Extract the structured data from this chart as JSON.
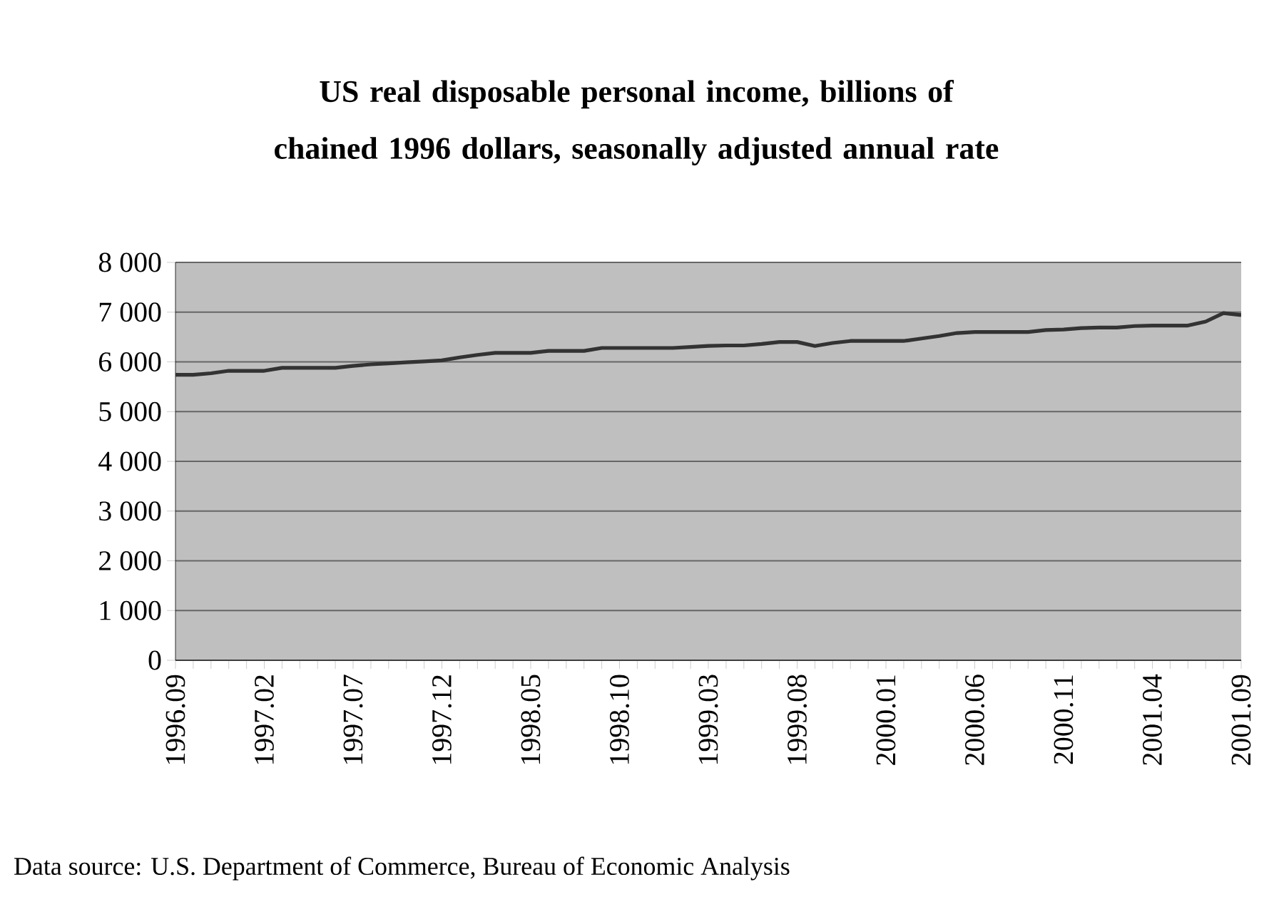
{
  "chart_data": {
    "type": "line",
    "title": "US real disposable personal income, billions of chained 1996 dollars, seasonally adjusted annual rate",
    "categories": [
      "1996.09",
      null,
      null,
      null,
      null,
      "1997.02",
      null,
      null,
      null,
      null,
      "1997.07",
      null,
      null,
      null,
      null,
      "1997.12",
      null,
      null,
      null,
      null,
      "1998.05",
      null,
      null,
      null,
      null,
      "1998.10",
      null,
      null,
      null,
      null,
      "1999.03",
      null,
      null,
      null,
      null,
      "1999.08",
      null,
      null,
      null,
      null,
      "2000.01",
      null,
      null,
      null,
      null,
      "2000.06",
      null,
      null,
      null,
      null,
      "2000.11",
      null,
      null,
      null,
      null,
      "2001.04",
      null,
      null,
      null,
      null,
      "2001.09"
    ],
    "series": [
      {
        "color": "#333333",
        "values": [
          5740,
          5740,
          5770,
          5820,
          5820,
          5820,
          5880,
          5880,
          5880,
          5880,
          5920,
          5950,
          5970,
          5990,
          6010,
          6030,
          6090,
          6140,
          6180,
          6180,
          6180,
          6220,
          6220,
          6220,
          6280,
          6280,
          6280,
          6280,
          6280,
          6300,
          6320,
          6330,
          6330,
          6360,
          6400,
          6400,
          6320,
          6380,
          6420,
          6420,
          6420,
          6420,
          6470,
          6520,
          6580,
          6600,
          6600,
          6600,
          6600,
          6640,
          6650,
          6680,
          6690,
          6690,
          6720,
          6730,
          6730,
          6730,
          6810,
          6980,
          6940
        ]
      }
    ],
    "ylim": [
      0,
      8000
    ],
    "yticks": [
      0,
      {
        "value": 1000,
        "label": "1 000"
      },
      {
        "value": 2000,
        "label": "2 000"
      },
      {
        "value": 3000,
        "label": "3 000"
      },
      {
        "value": 4000,
        "label": "4 000"
      },
      {
        "value": 5000,
        "label": "5 000"
      },
      {
        "value": 6000,
        "label": "6 000"
      },
      {
        "value": 7000,
        "label": "7 000"
      },
      {
        "value": 8000,
        "label": "8 000"
      }
    ],
    "grid": "y",
    "legend": false,
    "marker": "none",
    "line_style": "solid",
    "annotations": [
      "Data source: U.S. Department of Commerce, Bureau of Economic Analysis"
    ]
  }
}
